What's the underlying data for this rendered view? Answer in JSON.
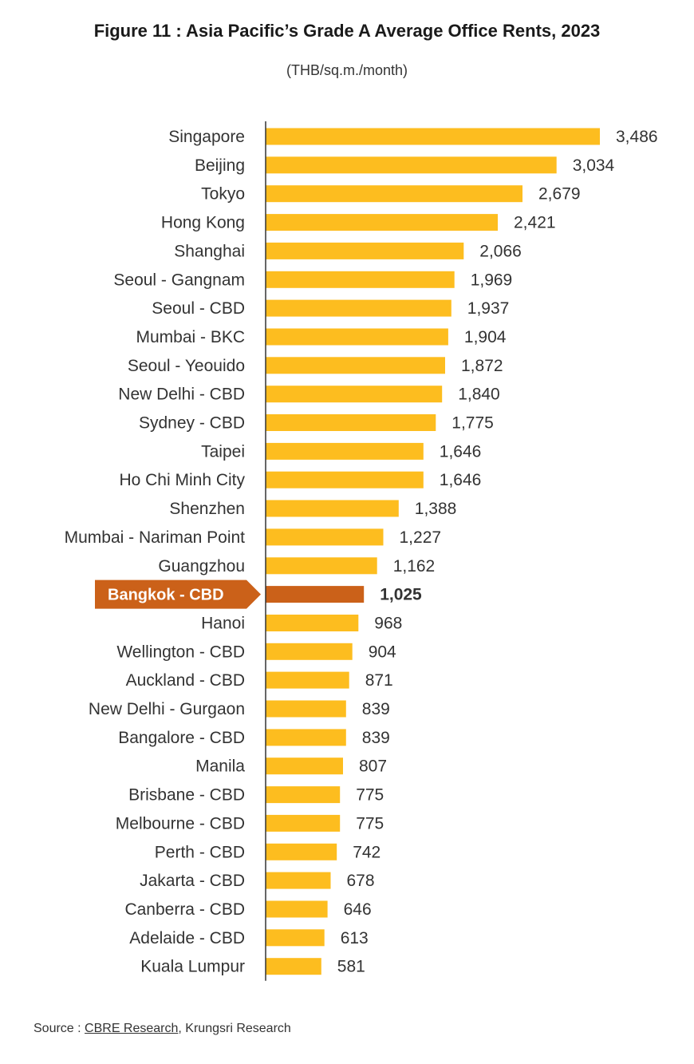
{
  "title": "Figure 11 : Asia Pacific’s Grade A Average Office Rents, 2023",
  "subtitle": "(THB/sq.m./month)",
  "source": {
    "prefix": "Source : ",
    "link_text": "CBRE Research",
    "suffix": ", Krungsri Research"
  },
  "colors": {
    "bar": "#FDBD1F",
    "highlight": "#CB6119",
    "axis": "#333333"
  },
  "chart_data": {
    "type": "bar",
    "orientation": "horizontal",
    "highlight_category": "Bangkok - CBD",
    "categories": [
      "Singapore",
      "Beijing",
      "Tokyo",
      "Hong Kong",
      "Shanghai",
      "Seoul - Gangnam",
      "Seoul - CBD",
      "Mumbai - BKC",
      "Seoul - Yeouido",
      "New Delhi - CBD",
      "Sydney - CBD",
      "Taipei",
      "Ho Chi Minh City",
      "Shenzhen",
      "Mumbai - Nariman Point",
      "Guangzhou",
      "Bangkok - CBD",
      "Hanoi",
      "Wellington - CBD",
      "Auckland - CBD",
      "New Delhi - Gurgaon",
      "Bangalore - CBD",
      "Manila",
      "Brisbane - CBD",
      "Melbourne - CBD",
      "Perth - CBD",
      "Jakarta - CBD",
      "Canberra - CBD",
      "Adelaide - CBD",
      "Kuala Lumpur"
    ],
    "values": [
      3486,
      3034,
      2679,
      2421,
      2066,
      1969,
      1937,
      1904,
      1872,
      1840,
      1775,
      1646,
      1646,
      1388,
      1227,
      1162,
      1025,
      968,
      904,
      871,
      839,
      839,
      807,
      775,
      775,
      742,
      678,
      646,
      613,
      581
    ],
    "value_labels": [
      "3,486",
      "3,034",
      "2,679",
      "2,421",
      "2,066",
      "1,969",
      "1,937",
      "1,904",
      "1,872",
      "1,840",
      "1,775",
      "1,646",
      "1,646",
      "1,388",
      "1,227",
      "1,162",
      "1,025",
      "968",
      "904",
      "871",
      "839",
      "839",
      "807",
      "775",
      "775",
      "742",
      "678",
      "646",
      "613",
      "581"
    ],
    "xlim": [
      0,
      3486
    ],
    "grid": false,
    "legend": "none"
  }
}
